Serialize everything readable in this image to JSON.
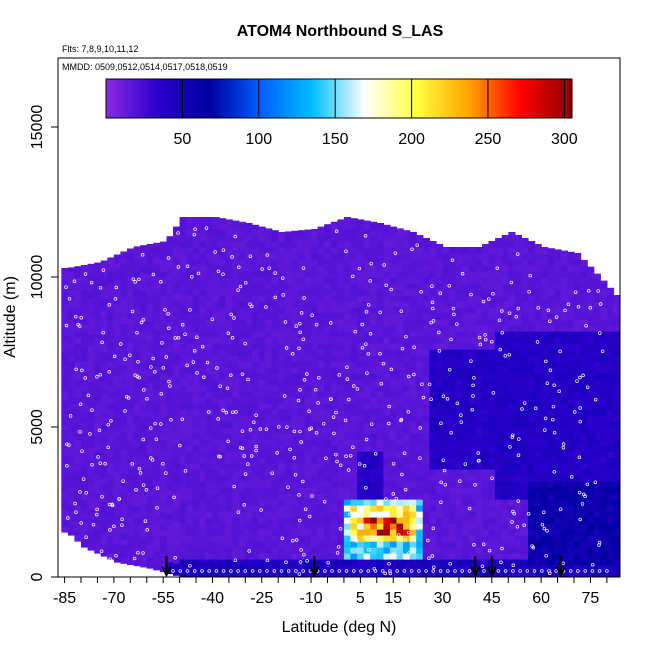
{
  "chart_data": {
    "type": "heatmap",
    "title": "ATOM4 Northbound S_LAS",
    "subtitle_flights": "Flts: 7,8,9,10,11,12",
    "subtitle_dates": "MMDD: 0509,0512,0514,0517,0518,0519",
    "xlabel": "Latitude (deg N)",
    "ylabel": "Altitude (m)",
    "xlim": [
      -87,
      84
    ],
    "ylim": [
      0,
      17300
    ],
    "x_ticks": [
      -85,
      -70,
      -55,
      -40,
      -25,
      -10,
      5,
      15,
      30,
      45,
      60,
      75
    ],
    "y_ticks": [
      0,
      5000,
      10000,
      15000
    ],
    "colorbar": {
      "ticks": [
        50,
        100,
        150,
        200,
        250,
        300
      ],
      "range": [
        0,
        305
      ],
      "colors": [
        "#8a2be2",
        "#2a00cc",
        "#0000a0",
        "#0060ff",
        "#00bfff",
        "#ffffff",
        "#ffff40",
        "#ffa500",
        "#ff0000",
        "#8b0000"
      ]
    },
    "ceiling_profile": [
      {
        "lat": -85,
        "alt": 10300
      },
      {
        "lat": -75,
        "alt": 10500
      },
      {
        "lat": -65,
        "alt": 11000
      },
      {
        "lat": -55,
        "alt": 11200
      },
      {
        "lat": -50,
        "alt": 12000
      },
      {
        "lat": -40,
        "alt": 12000
      },
      {
        "lat": -30,
        "alt": 11800
      },
      {
        "lat": -20,
        "alt": 11500
      },
      {
        "lat": -10,
        "alt": 11600
      },
      {
        "lat": 0,
        "alt": 12000
      },
      {
        "lat": 10,
        "alt": 11800
      },
      {
        "lat": 20,
        "alt": 11500
      },
      {
        "lat": 30,
        "alt": 11000
      },
      {
        "lat": 40,
        "alt": 11000
      },
      {
        "lat": 50,
        "alt": 11500
      },
      {
        "lat": 60,
        "alt": 11000
      },
      {
        "lat": 70,
        "alt": 10800
      },
      {
        "lat": 77,
        "alt": 10000
      },
      {
        "lat": 82,
        "alt": 9400
      }
    ],
    "base_profile": [
      {
        "lat": -85,
        "alt": 1500
      },
      {
        "lat": -80,
        "alt": 1000
      },
      {
        "lat": -70,
        "alt": 500
      },
      {
        "lat": -60,
        "alt": 300
      },
      {
        "lat": -50,
        "alt": 0
      }
    ],
    "enhancement": [
      {
        "lat_min": 0,
        "lat_max": 22,
        "alt_min": 600,
        "alt_max": 2500,
        "value": 150
      },
      {
        "lat_min": 2,
        "lat_max": 20,
        "alt_min": 1100,
        "alt_max": 2200,
        "value": 205
      },
      {
        "lat_min": 6,
        "lat_max": 19,
        "alt_min": 1400,
        "alt_max": 1900,
        "value": 265
      },
      {
        "lat_min": 4,
        "lat_max": 11,
        "alt_min": 2600,
        "alt_max": 4000,
        "value": 40
      },
      {
        "lat_min": 25,
        "lat_max": 55,
        "alt_min": 3500,
        "alt_max": 7500,
        "value": 40
      },
      {
        "lat_min": 45,
        "lat_max": 82,
        "alt_min": 2500,
        "alt_max": 8000,
        "value": 40
      },
      {
        "lat_min": 55,
        "lat_max": 82,
        "alt_min": 300,
        "alt_max": 3000,
        "value": 60
      },
      {
        "lat_min": -55,
        "lat_max": 82,
        "alt_min": 0,
        "alt_max": 400,
        "value": 45
      }
    ],
    "profile_arrows_lat": [
      -54,
      -9,
      40,
      45,
      66
    ]
  }
}
